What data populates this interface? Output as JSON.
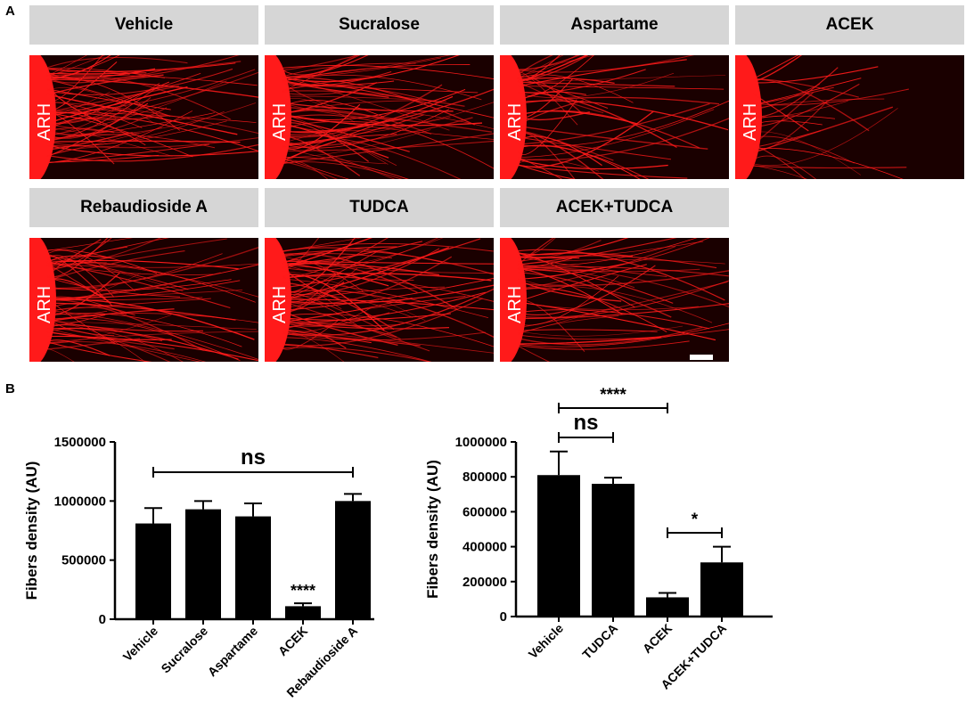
{
  "panel_a_letter": "A",
  "panel_b_letter": "B",
  "region_label": "ARH",
  "images": [
    {
      "label": "Vehicle",
      "density": "high"
    },
    {
      "label": "Sucralose",
      "density": "high"
    },
    {
      "label": "Aspartame",
      "density": "medium"
    },
    {
      "label": "ACEK",
      "density": "low"
    },
    {
      "label": "Rebaudioside A",
      "density": "high"
    },
    {
      "label": "TUDCA",
      "density": "high"
    },
    {
      "label": "ACEK+TUDCA",
      "density": "medium"
    }
  ],
  "colors": {
    "fiber": "#ff1a1a",
    "background": "#1a0000",
    "label_bg": "#d6d6d6",
    "bar": "#000000"
  },
  "chart_data": [
    {
      "type": "bar",
      "categories": [
        "Vehicle",
        "Sucralose",
        "Aspartame",
        "ACEK",
        "Rebaudioside A"
      ],
      "values": [
        810000,
        930000,
        870000,
        110000,
        1000000
      ],
      "errors": [
        130000,
        70000,
        110000,
        25000,
        60000
      ],
      "ylabel": "Fibers density (AU)",
      "ylim": [
        0,
        1500000
      ],
      "yticks": [
        "0",
        "500000",
        "1000000",
        "1500000"
      ],
      "annotations": [
        {
          "text": "ns",
          "from": "Vehicle",
          "to": "Rebaudioside A"
        },
        {
          "text": "****",
          "over": "ACEK"
        }
      ]
    },
    {
      "type": "bar",
      "categories": [
        "Vehicle",
        "TUDCA",
        "ACEK",
        "ACEK+TUDCA"
      ],
      "values": [
        810000,
        760000,
        110000,
        310000
      ],
      "errors": [
        135000,
        35000,
        25000,
        90000
      ],
      "ylabel": "Fibers density (AU)",
      "ylim": [
        0,
        1000000
      ],
      "yticks": [
        "0",
        "200000",
        "400000",
        "600000",
        "800000",
        "1000000"
      ],
      "annotations": [
        {
          "text": "ns",
          "from": "Vehicle",
          "to": "TUDCA"
        },
        {
          "text": "****",
          "from": "Vehicle",
          "to": "ACEK"
        },
        {
          "text": "*",
          "from": "ACEK",
          "to": "ACEK+TUDCA"
        }
      ]
    }
  ]
}
